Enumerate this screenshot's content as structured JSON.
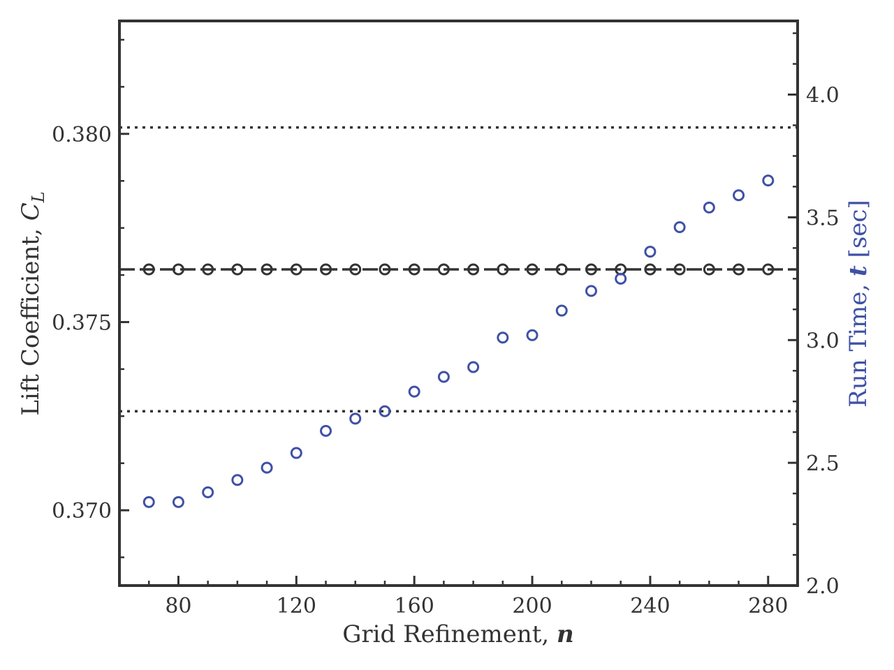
{
  "chart_data": {
    "type": "scatter",
    "title": "",
    "xlabel": "Grid Refinement, n",
    "ylabel_left": "Lift Coefficient, C_L",
    "ylabel_right": "Run Time, t [sec]",
    "xlim": [
      60,
      290
    ],
    "ylim_left": [
      0.368,
      0.383
    ],
    "ylim_right": [
      2.0,
      4.3
    ],
    "x_ticks": [
      "80",
      "120",
      "160",
      "200",
      "240",
      "280"
    ],
    "x_tick_values": [
      80,
      120,
      160,
      200,
      240,
      280
    ],
    "y_left_ticks": [
      "0.370",
      "0.375",
      "0.380"
    ],
    "y_left_tick_values": [
      0.37,
      0.375,
      0.38
    ],
    "y_right_ticks": [
      "2.0",
      "2.5",
      "3.0",
      "3.5",
      "4.0"
    ],
    "y_right_tick_values": [
      2.0,
      2.5,
      3.0,
      3.5,
      4.0
    ],
    "grid": false,
    "x": [
      70,
      80,
      90,
      100,
      110,
      120,
      130,
      140,
      150,
      160,
      170,
      180,
      190,
      200,
      210,
      220,
      230,
      240,
      250,
      260,
      270,
      280
    ],
    "series": [
      {
        "axis": "left",
        "color": "#333333",
        "marker": "circle-open",
        "values": [
          0.3764,
          0.3764,
          0.3764,
          0.3764,
          0.3764,
          0.3764,
          0.3764,
          0.3764,
          0.3764,
          0.3764,
          0.3764,
          0.3764,
          0.3764,
          0.3764,
          0.3764,
          0.3764,
          0.3764,
          0.3764,
          0.3764,
          0.3764,
          0.3764,
          0.3764
        ]
      },
      {
        "axis": "right",
        "color": "#3f51a5",
        "marker": "circle-open",
        "values": [
          2.34,
          2.34,
          2.38,
          2.43,
          2.48,
          2.54,
          2.63,
          2.68,
          2.71,
          2.79,
          2.85,
          2.89,
          3.01,
          3.02,
          3.12,
          3.2,
          3.25,
          3.36,
          3.46,
          3.54,
          3.59,
          3.65
        ]
      }
    ],
    "reference_lines": [
      {
        "axis": "left",
        "y": 0.3764,
        "style": "dashed",
        "color": "#333333"
      },
      {
        "axis": "left",
        "y": 0.38017,
        "style": "dotted",
        "color": "#333333"
      },
      {
        "axis": "left",
        "y": 0.37263,
        "style": "dotted",
        "color": "#333333"
      }
    ],
    "colors": {
      "axis": "#333333",
      "right_axis_label": "#3f51a5"
    }
  }
}
